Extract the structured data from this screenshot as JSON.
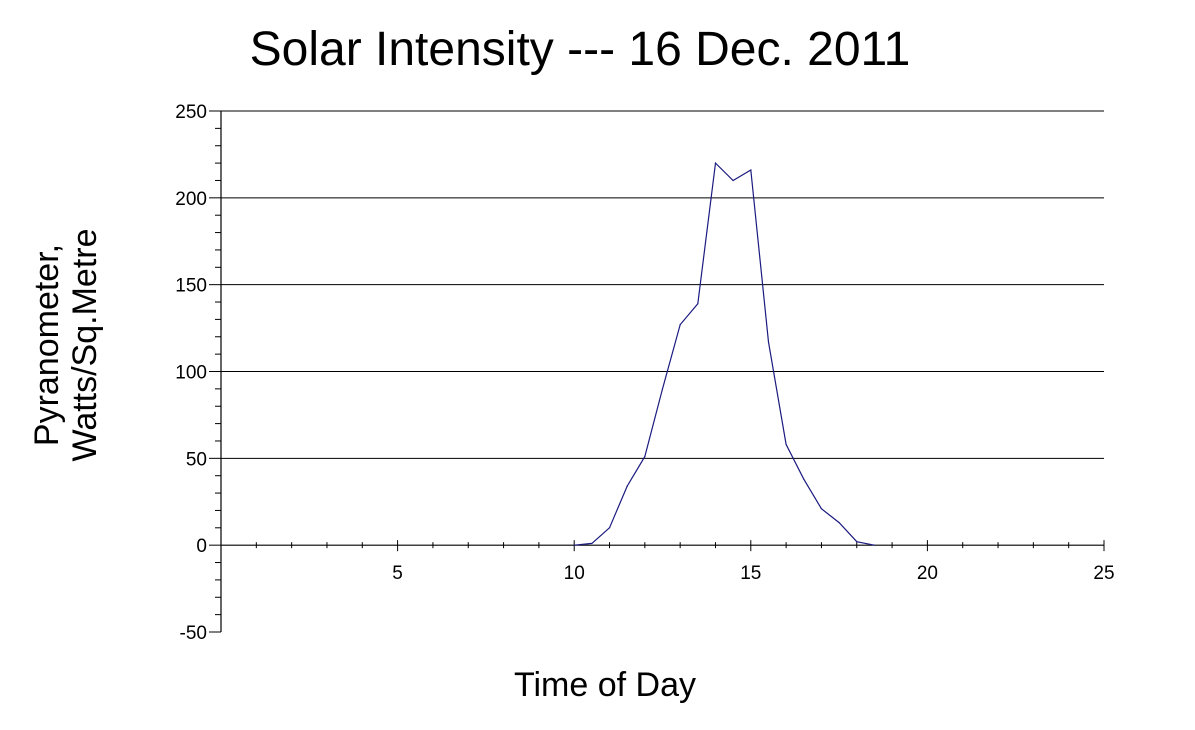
{
  "chart_data": {
    "type": "line",
    "title": "Solar Intensity --- 16 Dec. 2011",
    "xlabel": "Time of Day",
    "ylabel_lines": [
      "Pyranometer,",
      "Watts/Sq.Metre"
    ],
    "xlim": [
      0,
      25
    ],
    "ylim": [
      -50,
      250
    ],
    "x_ticks": [
      5,
      10,
      15,
      20,
      25
    ],
    "y_ticks": [
      -50,
      0,
      50,
      100,
      150,
      200,
      250
    ],
    "x_minor_step": 1,
    "y_minor_step": 10,
    "grid": "horizontal major gridlines",
    "line_color": "#1a1a80",
    "series": [
      {
        "x": [
          10.0,
          10.5,
          11.0,
          11.5,
          12.0,
          12.5,
          13.0,
          13.5,
          14.0,
          14.5,
          15.0,
          15.5,
          16.0,
          16.5,
          17.0,
          17.5,
          18.0,
          18.5
        ],
        "values": [
          0,
          1,
          10,
          34,
          51,
          90,
          127,
          139,
          220,
          210,
          216,
          117,
          58,
          38,
          21,
          13,
          2,
          0
        ]
      }
    ]
  }
}
